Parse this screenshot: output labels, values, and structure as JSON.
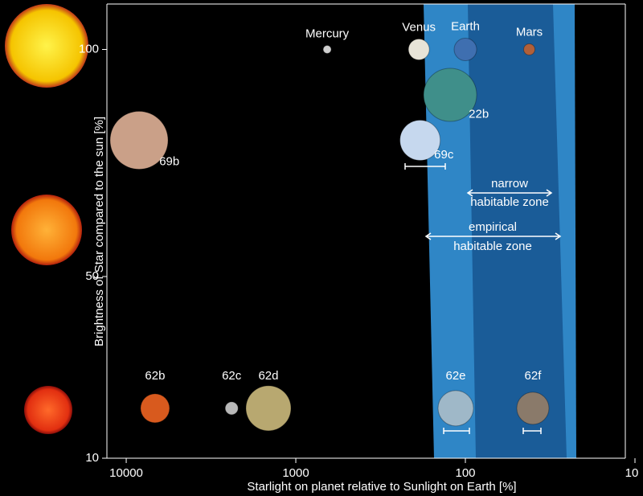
{
  "chart_data": {
    "type": "scatter",
    "x_label": "Starlight on planet relative to Sunlight on Earth [%]",
    "y_label": "Brightness of Star compared to the sun [%]",
    "categories": [
      "Mercury",
      "Venus",
      "Earth",
      "Mars",
      "22b",
      "69c",
      "69b",
      "62b",
      "62c",
      "62d",
      "62e",
      "62f"
    ],
    "x": [
      653,
      188,
      100,
      42,
      123,
      185,
      8400,
      6760,
      2390,
      1450,
      114,
      40
    ],
    "values": [
      100,
      100,
      100,
      100,
      90,
      80,
      80,
      21,
      21,
      21,
      21,
      21
    ],
    "xscale": "log",
    "xlim": [
      13000,
      10
    ],
    "xticks": [
      10000,
      1000,
      100,
      10
    ],
    "ylim": [
      10,
      110
    ],
    "yticks": [
      10,
      50,
      100
    ],
    "annotations": [
      "narrow",
      "habitable zone",
      "empirical",
      "habitable zone"
    ]
  }
}
